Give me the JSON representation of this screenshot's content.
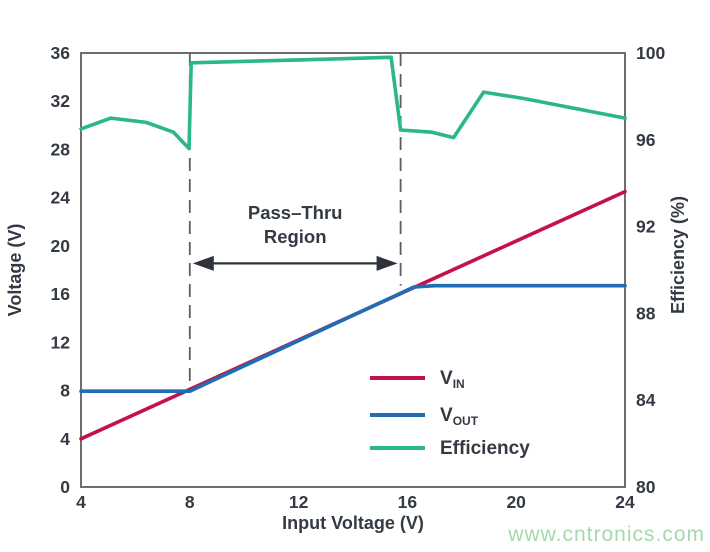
{
  "watermark": {
    "text": "www.cntronics.com",
    "color": "#a5d8ab"
  },
  "colors": {
    "background": "#ffffff",
    "frame": "#6e6e6e",
    "text": "#343a44",
    "dashed_line": "#5a5e66",
    "arrow": "#2e333c",
    "vin_red": "#c31247",
    "vout_blue": "#1f6eb5",
    "efficiency_green": "#2ab886"
  },
  "chart_data": {
    "type": "line",
    "title": "",
    "grid": false,
    "x_axis": {
      "label": "Input Voltage (V)",
      "min": 4,
      "max": 24,
      "ticks": [
        4,
        8,
        12,
        16,
        20,
        24
      ]
    },
    "y_axis_left": {
      "label": "Voltage (V)",
      "min": 0,
      "max": 36,
      "ticks": [
        0,
        4,
        8,
        12,
        16,
        20,
        24,
        28,
        32,
        36
      ]
    },
    "y_axis_right": {
      "label": "Efficiency (%)",
      "min": 80,
      "max": 100,
      "ticks": [
        80,
        84,
        88,
        92,
        96,
        100
      ]
    },
    "series": [
      {
        "name": "VIN",
        "legend_main": "V",
        "legend_sub": "IN",
        "axis": "left",
        "color": "#c31247",
        "points": [
          [
            4,
            4.0
          ],
          [
            24,
            24.5
          ]
        ]
      },
      {
        "name": "VOUT",
        "legend_main": "V",
        "legend_sub": "OUT",
        "axis": "left",
        "color": "#1f6eb5",
        "points": [
          [
            4,
            7.95
          ],
          [
            8,
            7.95
          ],
          [
            16.25,
            16.6
          ],
          [
            17,
            16.7
          ],
          [
            24,
            16.7
          ]
        ]
      },
      {
        "name": "Efficiency",
        "legend_main": "Efficiency",
        "legend_sub": "",
        "axis": "right",
        "color": "#2ab886",
        "points": [
          [
            4,
            96.5
          ],
          [
            5.1,
            97.0
          ],
          [
            6.4,
            96.8
          ],
          [
            7.4,
            96.35
          ],
          [
            7.97,
            95.6
          ],
          [
            8.05,
            99.55
          ],
          [
            12,
            99.68
          ],
          [
            15.4,
            99.8
          ],
          [
            15.75,
            96.45
          ],
          [
            16.9,
            96.35
          ],
          [
            17.7,
            96.1
          ],
          [
            18.8,
            98.2
          ],
          [
            20.3,
            97.9
          ],
          [
            24,
            97.0
          ]
        ]
      }
    ],
    "pass_thru_region": {
      "x_start": 8,
      "x_end": 15.75,
      "dash1_bottom_left_axis": 8.1,
      "dash2_bottom_left_axis": 16.7
    },
    "annotation": {
      "line1": "Pass–Thru",
      "line2": "Region",
      "x_center": 11.875,
      "arrow_y_left_axis": 18.55
    },
    "legend": {
      "position": "inside-bottom-right"
    }
  }
}
